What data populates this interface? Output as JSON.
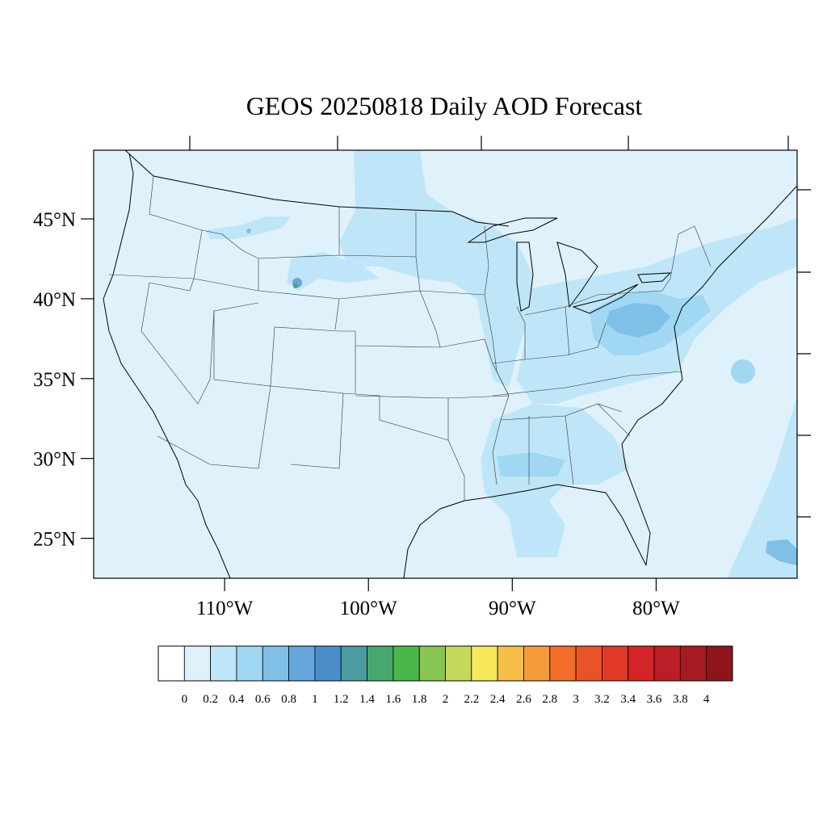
{
  "title": "GEOS 20250818 Daily AOD Forecast",
  "map": {
    "lat_range": [
      22.5,
      49.3
    ],
    "lon_range": [
      -119.1,
      -70.2
    ],
    "lat_labels": [
      "25°N",
      "30°N",
      "35°N",
      "40°N",
      "45°N"
    ],
    "lat_values": [
      25,
      30,
      35,
      40,
      45
    ],
    "lon_labels": [
      "110°W",
      "100°W",
      "90°W",
      "80°W"
    ],
    "lon_values": [
      -110,
      -100,
      -90,
      -80
    ]
  },
  "colorbar": {
    "labels": [
      "0",
      "0.2",
      "0.4",
      "0.6",
      "0.8",
      "1",
      "1.2",
      "1.4",
      "1.6",
      "1.8",
      "2",
      "2.2",
      "2.4",
      "2.6",
      "2.8",
      "3",
      "3.2",
      "3.4",
      "3.6",
      "3.8",
      "4"
    ],
    "colors": [
      "#ffffff",
      "#dff2fb",
      "#bfe6f8",
      "#a0d7f3",
      "#80bfe6",
      "#66a6da",
      "#4a8fc9",
      "#4b9ba0",
      "#46a86c",
      "#4bb74a",
      "#88c64f",
      "#c4d85a",
      "#f8e85c",
      "#f6bf48",
      "#f59a3a",
      "#f26c2a",
      "#ea5228",
      "#e03a26",
      "#d42428",
      "#bd1d26",
      "#a61a22",
      "#8e151c"
    ]
  },
  "field_colors": {
    "background": "#dff2fb",
    "light": "#bfe6f8",
    "medium": "#a0d7f3",
    "strong": "#80bfe6",
    "peak": "#66a6da",
    "hotspot": "#46a86c"
  }
}
